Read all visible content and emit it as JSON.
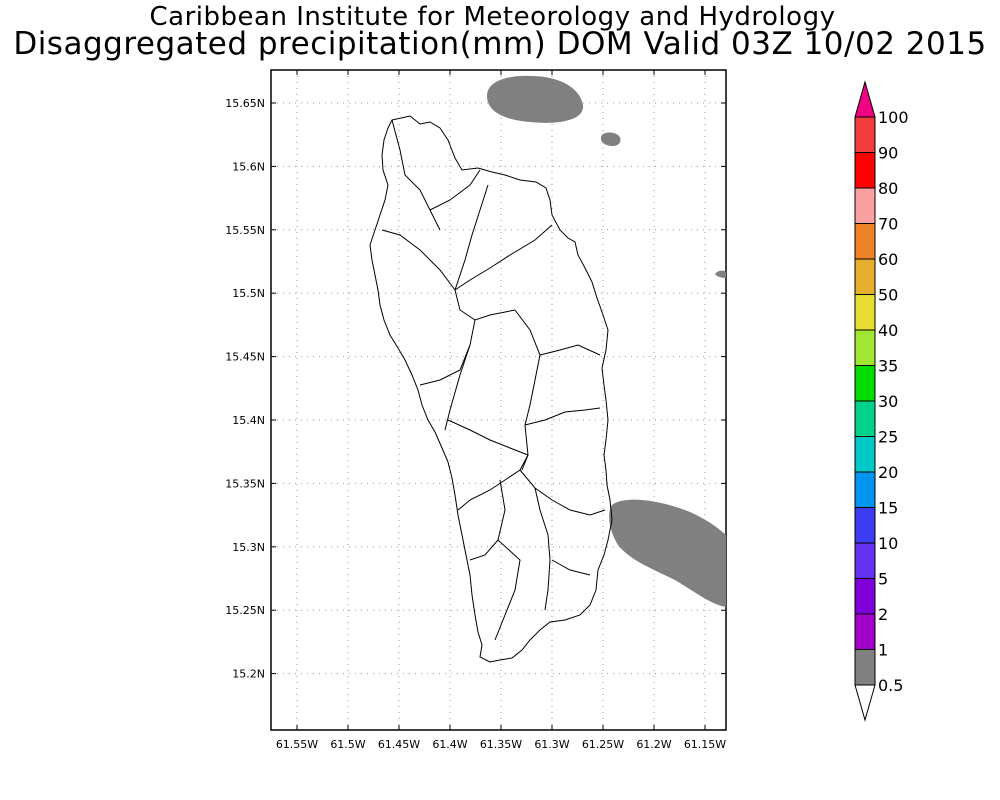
{
  "title": {
    "line1": "Caribbean Institute for Meteorology and Hydrology",
    "line2": "Disaggregated precipitation(mm) DOM Valid 03Z 10/02 2015"
  },
  "map": {
    "lat_ticks": [
      "15.65N",
      "15.6N",
      "15.55N",
      "15.5N",
      "15.45N",
      "15.4N",
      "15.35N",
      "15.3N",
      "15.25N",
      "15.2N"
    ],
    "lon_ticks": [
      "61.55W",
      "61.5W",
      "61.45W",
      "61.4W",
      "61.35W",
      "61.3W",
      "61.25W",
      "61.2W",
      "61.15W"
    ],
    "grid": "dotted",
    "precip_areas_color": "#808080"
  },
  "colorbar": {
    "levels": [
      {
        "label": "0.5",
        "color": "#808080"
      },
      {
        "label": "1",
        "color": "#a000c8"
      },
      {
        "label": "2",
        "color": "#8000dc"
      },
      {
        "label": "5",
        "color": "#6432f0"
      },
      {
        "label": "10",
        "color": "#3c3cf0"
      },
      {
        "label": "15",
        "color": "#0096f0"
      },
      {
        "label": "20",
        "color": "#00c8c8"
      },
      {
        "label": "25",
        "color": "#00d28c"
      },
      {
        "label": "30",
        "color": "#00dc00"
      },
      {
        "label": "35",
        "color": "#a0e632"
      },
      {
        "label": "40",
        "color": "#e6dc32"
      },
      {
        "label": "50",
        "color": "#e6af2d"
      },
      {
        "label": "60",
        "color": "#f08228"
      },
      {
        "label": "70",
        "color": "#faa0a0"
      },
      {
        "label": "80",
        "color": "#ff0000"
      },
      {
        "label": "90",
        "color": "#f03c3c"
      },
      {
        "label": "100",
        "color": "#f0287a"
      }
    ],
    "top_arrow_color": "#f00082",
    "bottom_arrow_color": "#ffffff"
  }
}
